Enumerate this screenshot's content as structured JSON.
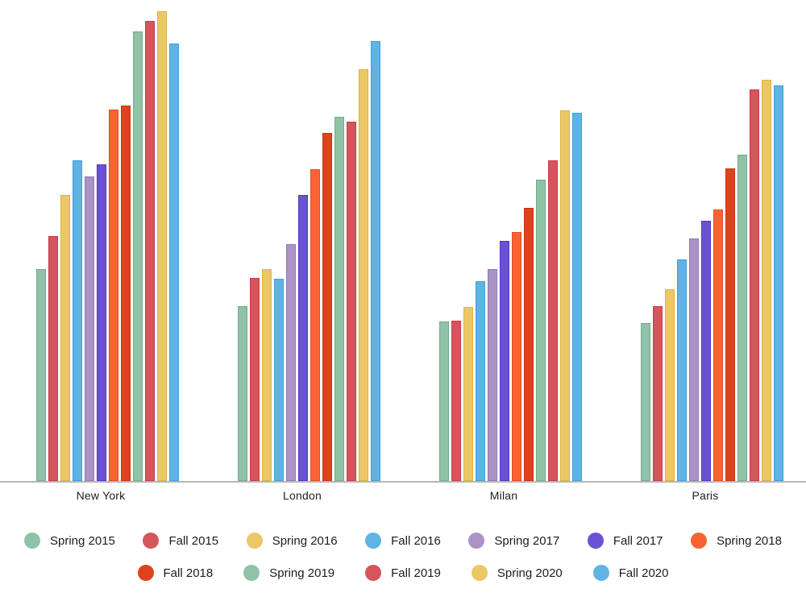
{
  "chart_data": {
    "type": "bar",
    "title": "",
    "xlabel": "",
    "ylabel": "",
    "grid": false,
    "y_axis_labels_visible": false,
    "ylim": [
      0,
      600
    ],
    "values_note": "No y-axis scale shown; values estimated in relative units (plot max = 600)",
    "categories": [
      "New York",
      "London",
      "Milan",
      "Paris"
    ],
    "series": [
      {
        "name": "Spring 2015",
        "color": "#8FC2A6",
        "border_color": "#74AC8B",
        "values": [
          264,
          218,
          199,
          197
        ]
      },
      {
        "name": "Fall 2015",
        "color": "#D4555B",
        "border_color": "#C24048",
        "values": [
          306,
          253,
          200,
          218
        ]
      },
      {
        "name": "Spring 2016",
        "color": "#ECC766",
        "border_color": "#DDB246",
        "values": [
          357,
          264,
          217,
          239
        ]
      },
      {
        "name": "Fall 2016",
        "color": "#5FB4E5",
        "border_color": "#429FD8",
        "values": [
          400,
          252,
          249,
          276
        ]
      },
      {
        "name": "Spring 2017",
        "color": "#AB93C6",
        "border_color": "#9579B6",
        "values": [
          380,
          295,
          264,
          303
        ]
      },
      {
        "name": "Fall 2017",
        "color": "#6B51D6",
        "border_color": "#5438C2",
        "values": [
          395,
          357,
          299,
          325
        ]
      },
      {
        "name": "Spring 2018",
        "color": "#F96333",
        "border_color": "#E54E1C",
        "values": [
          463,
          389,
          311,
          339
        ]
      },
      {
        "name": "Fall 2018",
        "color": "#DE431E",
        "border_color": "#C53812",
        "values": [
          468,
          434,
          341,
          390
        ]
      },
      {
        "name": "Spring 2019",
        "color": "#8FC2A6",
        "border_color": "#74AC8B",
        "values": [
          561,
          454,
          376,
          407
        ]
      },
      {
        "name": "Fall 2019",
        "color": "#D4555B",
        "border_color": "#C24048",
        "values": [
          574,
          448,
          400,
          488
        ]
      },
      {
        "name": "Spring 2020",
        "color": "#ECC766",
        "border_color": "#DDB246",
        "values": [
          586,
          514,
          462,
          501
        ]
      },
      {
        "name": "Fall 2020",
        "color": "#5FB4E5",
        "border_color": "#429FD8",
        "values": [
          546,
          549,
          459,
          493
        ]
      }
    ],
    "legend_position": "bottom",
    "legend_rows": [
      [
        "Spring 2015",
        "Fall 2015",
        "Spring 2016",
        "Fall 2016",
        "Spring 2017",
        "Fall 2017",
        "Spring 2018"
      ],
      [
        "Fall 2018",
        "Spring 2019",
        "Fall 2019",
        "Spring 2020",
        "Fall 2020"
      ]
    ]
  },
  "axis": {
    "line_color": "#b5b5b5",
    "label_color": "#212121"
  },
  "legend": {
    "text_color": "#1d1d1d"
  }
}
